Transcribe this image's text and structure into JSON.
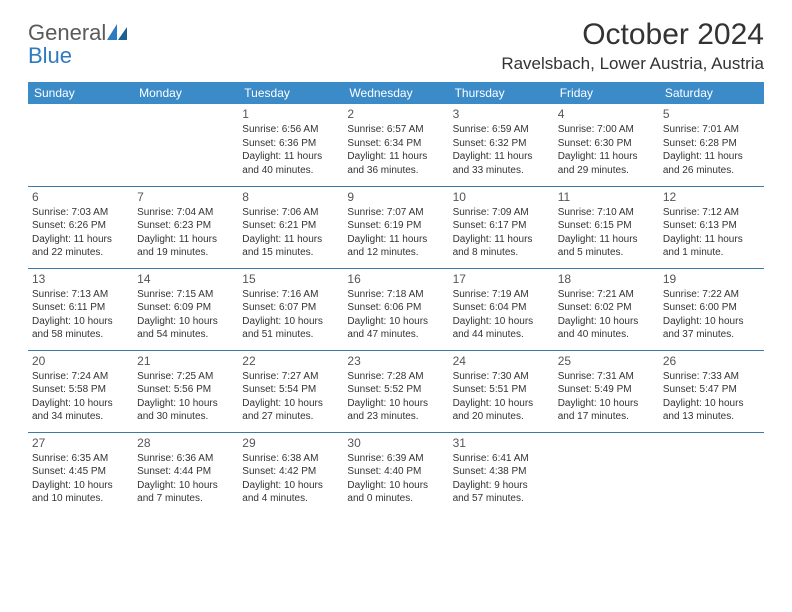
{
  "logo": {
    "text1": "General",
    "text2": "Blue"
  },
  "title": "October 2024",
  "location": "Ravelsbach, Lower Austria, Austria",
  "colors": {
    "header_bg": "#3b8bc9",
    "header_text": "#ffffff",
    "rule": "#3b7aa8",
    "body_text": "#333333",
    "logo_gray": "#5a5a5a",
    "logo_blue": "#2f7bbf"
  },
  "weekdays": [
    "Sunday",
    "Monday",
    "Tuesday",
    "Wednesday",
    "Thursday",
    "Friday",
    "Saturday"
  ],
  "weeks": [
    [
      null,
      null,
      {
        "d": "1",
        "sr": "Sunrise: 6:56 AM",
        "ss": "Sunset: 6:36 PM",
        "dl1": "Daylight: 11 hours",
        "dl2": "and 40 minutes."
      },
      {
        "d": "2",
        "sr": "Sunrise: 6:57 AM",
        "ss": "Sunset: 6:34 PM",
        "dl1": "Daylight: 11 hours",
        "dl2": "and 36 minutes."
      },
      {
        "d": "3",
        "sr": "Sunrise: 6:59 AM",
        "ss": "Sunset: 6:32 PM",
        "dl1": "Daylight: 11 hours",
        "dl2": "and 33 minutes."
      },
      {
        "d": "4",
        "sr": "Sunrise: 7:00 AM",
        "ss": "Sunset: 6:30 PM",
        "dl1": "Daylight: 11 hours",
        "dl2": "and 29 minutes."
      },
      {
        "d": "5",
        "sr": "Sunrise: 7:01 AM",
        "ss": "Sunset: 6:28 PM",
        "dl1": "Daylight: 11 hours",
        "dl2": "and 26 minutes."
      }
    ],
    [
      {
        "d": "6",
        "sr": "Sunrise: 7:03 AM",
        "ss": "Sunset: 6:26 PM",
        "dl1": "Daylight: 11 hours",
        "dl2": "and 22 minutes."
      },
      {
        "d": "7",
        "sr": "Sunrise: 7:04 AM",
        "ss": "Sunset: 6:23 PM",
        "dl1": "Daylight: 11 hours",
        "dl2": "and 19 minutes."
      },
      {
        "d": "8",
        "sr": "Sunrise: 7:06 AM",
        "ss": "Sunset: 6:21 PM",
        "dl1": "Daylight: 11 hours",
        "dl2": "and 15 minutes."
      },
      {
        "d": "9",
        "sr": "Sunrise: 7:07 AM",
        "ss": "Sunset: 6:19 PM",
        "dl1": "Daylight: 11 hours",
        "dl2": "and 12 minutes."
      },
      {
        "d": "10",
        "sr": "Sunrise: 7:09 AM",
        "ss": "Sunset: 6:17 PM",
        "dl1": "Daylight: 11 hours",
        "dl2": "and 8 minutes."
      },
      {
        "d": "11",
        "sr": "Sunrise: 7:10 AM",
        "ss": "Sunset: 6:15 PM",
        "dl1": "Daylight: 11 hours",
        "dl2": "and 5 minutes."
      },
      {
        "d": "12",
        "sr": "Sunrise: 7:12 AM",
        "ss": "Sunset: 6:13 PM",
        "dl1": "Daylight: 11 hours",
        "dl2": "and 1 minute."
      }
    ],
    [
      {
        "d": "13",
        "sr": "Sunrise: 7:13 AM",
        "ss": "Sunset: 6:11 PM",
        "dl1": "Daylight: 10 hours",
        "dl2": "and 58 minutes."
      },
      {
        "d": "14",
        "sr": "Sunrise: 7:15 AM",
        "ss": "Sunset: 6:09 PM",
        "dl1": "Daylight: 10 hours",
        "dl2": "and 54 minutes."
      },
      {
        "d": "15",
        "sr": "Sunrise: 7:16 AM",
        "ss": "Sunset: 6:07 PM",
        "dl1": "Daylight: 10 hours",
        "dl2": "and 51 minutes."
      },
      {
        "d": "16",
        "sr": "Sunrise: 7:18 AM",
        "ss": "Sunset: 6:06 PM",
        "dl1": "Daylight: 10 hours",
        "dl2": "and 47 minutes."
      },
      {
        "d": "17",
        "sr": "Sunrise: 7:19 AM",
        "ss": "Sunset: 6:04 PM",
        "dl1": "Daylight: 10 hours",
        "dl2": "and 44 minutes."
      },
      {
        "d": "18",
        "sr": "Sunrise: 7:21 AM",
        "ss": "Sunset: 6:02 PM",
        "dl1": "Daylight: 10 hours",
        "dl2": "and 40 minutes."
      },
      {
        "d": "19",
        "sr": "Sunrise: 7:22 AM",
        "ss": "Sunset: 6:00 PM",
        "dl1": "Daylight: 10 hours",
        "dl2": "and 37 minutes."
      }
    ],
    [
      {
        "d": "20",
        "sr": "Sunrise: 7:24 AM",
        "ss": "Sunset: 5:58 PM",
        "dl1": "Daylight: 10 hours",
        "dl2": "and 34 minutes."
      },
      {
        "d": "21",
        "sr": "Sunrise: 7:25 AM",
        "ss": "Sunset: 5:56 PM",
        "dl1": "Daylight: 10 hours",
        "dl2": "and 30 minutes."
      },
      {
        "d": "22",
        "sr": "Sunrise: 7:27 AM",
        "ss": "Sunset: 5:54 PM",
        "dl1": "Daylight: 10 hours",
        "dl2": "and 27 minutes."
      },
      {
        "d": "23",
        "sr": "Sunrise: 7:28 AM",
        "ss": "Sunset: 5:52 PM",
        "dl1": "Daylight: 10 hours",
        "dl2": "and 23 minutes."
      },
      {
        "d": "24",
        "sr": "Sunrise: 7:30 AM",
        "ss": "Sunset: 5:51 PM",
        "dl1": "Daylight: 10 hours",
        "dl2": "and 20 minutes."
      },
      {
        "d": "25",
        "sr": "Sunrise: 7:31 AM",
        "ss": "Sunset: 5:49 PM",
        "dl1": "Daylight: 10 hours",
        "dl2": "and 17 minutes."
      },
      {
        "d": "26",
        "sr": "Sunrise: 7:33 AM",
        "ss": "Sunset: 5:47 PM",
        "dl1": "Daylight: 10 hours",
        "dl2": "and 13 minutes."
      }
    ],
    [
      {
        "d": "27",
        "sr": "Sunrise: 6:35 AM",
        "ss": "Sunset: 4:45 PM",
        "dl1": "Daylight: 10 hours",
        "dl2": "and 10 minutes."
      },
      {
        "d": "28",
        "sr": "Sunrise: 6:36 AM",
        "ss": "Sunset: 4:44 PM",
        "dl1": "Daylight: 10 hours",
        "dl2": "and 7 minutes."
      },
      {
        "d": "29",
        "sr": "Sunrise: 6:38 AM",
        "ss": "Sunset: 4:42 PM",
        "dl1": "Daylight: 10 hours",
        "dl2": "and 4 minutes."
      },
      {
        "d": "30",
        "sr": "Sunrise: 6:39 AM",
        "ss": "Sunset: 4:40 PM",
        "dl1": "Daylight: 10 hours",
        "dl2": "and 0 minutes."
      },
      {
        "d": "31",
        "sr": "Sunrise: 6:41 AM",
        "ss": "Sunset: 4:38 PM",
        "dl1": "Daylight: 9 hours",
        "dl2": "and 57 minutes."
      },
      null,
      null
    ]
  ]
}
